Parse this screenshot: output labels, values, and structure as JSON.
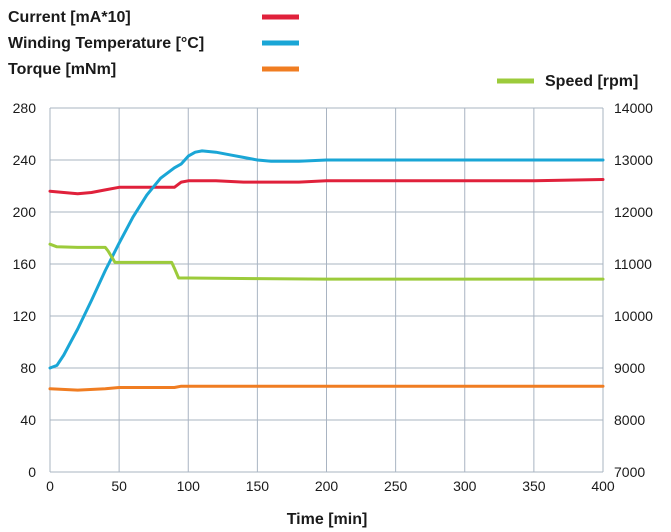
{
  "chart_data": {
    "type": "line",
    "xlabel": "Time [min]",
    "x_ticks": [
      0,
      50,
      100,
      150,
      200,
      250,
      300,
      350,
      400
    ],
    "xlim": [
      0,
      400
    ],
    "y_left_ticks": [
      0,
      40,
      80,
      120,
      160,
      200,
      240,
      280
    ],
    "y_left_lim": [
      0,
      280
    ],
    "y_right_ticks": [
      7000,
      8000,
      9000,
      10000,
      11000,
      12000,
      13000,
      14000
    ],
    "y_right_lim": [
      7000,
      14000
    ],
    "grid": true,
    "legend": [
      {
        "label": "Current [mA*10]",
        "color": "#e0213b"
      },
      {
        "label": "Winding Temperature [°C]",
        "color": "#1aa6d6"
      },
      {
        "label": "Torque [mNm]",
        "color": "#f07d22"
      },
      {
        "label": "Speed [rpm]",
        "color": "#9ccb3b"
      }
    ],
    "series": [
      {
        "name": "Current [mA*10]",
        "axis": "left",
        "color": "#e0213b",
        "x": [
          0,
          10,
          20,
          30,
          40,
          50,
          60,
          70,
          80,
          90,
          95,
          100,
          110,
          120,
          140,
          160,
          180,
          200,
          250,
          300,
          350,
          400
        ],
        "values": [
          216,
          215,
          214,
          215,
          217,
          219,
          219,
          219,
          219,
          219,
          223,
          224,
          224,
          224,
          223,
          223,
          223,
          224,
          224,
          224,
          224,
          225
        ]
      },
      {
        "name": "Winding Temperature [°C]",
        "axis": "left",
        "color": "#1aa6d6",
        "x": [
          0,
          5,
          10,
          15,
          20,
          30,
          40,
          50,
          60,
          70,
          80,
          90,
          95,
          100,
          105,
          110,
          120,
          130,
          140,
          150,
          160,
          180,
          200,
          250,
          300,
          350,
          400
        ],
        "values": [
          80,
          82,
          90,
          100,
          110,
          132,
          155,
          176,
          196,
          213,
          226,
          234,
          237,
          243,
          246,
          247,
          246,
          244,
          242,
          240,
          239,
          239,
          240,
          240,
          240,
          240,
          240
        ]
      },
      {
        "name": "Torque [mNm]",
        "axis": "left",
        "color": "#f07d22",
        "x": [
          0,
          20,
          40,
          50,
          80,
          90,
          95,
          100,
          150,
          200,
          250,
          300,
          350,
          400
        ],
        "values": [
          64,
          63,
          64,
          65,
          65,
          65,
          66,
          66,
          66,
          66,
          66,
          66,
          66,
          66
        ]
      },
      {
        "name": "Speed [rpm]",
        "axis": "right",
        "color": "#9ccb3b",
        "x": [
          0,
          5,
          20,
          40,
          42,
          47,
          50,
          88,
          90,
          93,
          100,
          150,
          200,
          250,
          300,
          350,
          400
        ],
        "values": [
          11380,
          11330,
          11320,
          11320,
          11250,
          11030,
          11030,
          11030,
          10920,
          10730,
          10730,
          10720,
          10710,
          10710,
          10710,
          10710,
          10710
        ]
      }
    ]
  }
}
